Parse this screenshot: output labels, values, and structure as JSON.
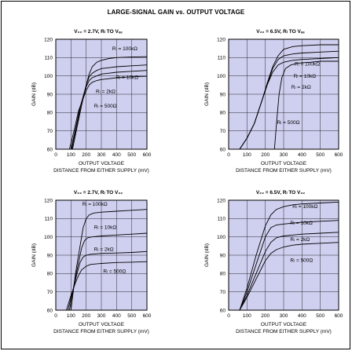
{
  "page_title": "LARGE-SIGNAL GAIN vs. OUTPUT VOLTAGE",
  "colors": {
    "plot_background": "#cfcfef",
    "line": "#000000",
    "grid": "#000000"
  },
  "chart_data": [
    {
      "type": "line",
      "title": "V₂₂ = 2.7V, Rₗ TO Vₑₑ",
      "xlabel": "OUTPUT VOLTAGE",
      "xlabel2": "DISTANCE FROM EITHER SUPPLY (mV)",
      "ylabel": "GAIN (dB)",
      "xlim": [
        0,
        600
      ],
      "ylim": [
        60,
        120
      ],
      "xticks": [
        "0",
        "100",
        "200",
        "300",
        "400",
        "500",
        "600"
      ],
      "yticks": [
        "60",
        "70",
        "80",
        "90",
        "100",
        "110",
        "120"
      ],
      "grid": true,
      "series": [
        {
          "name": "Rₗ = 100kΩ",
          "x": [
            110,
            140,
            170,
            200,
            220,
            240,
            270,
            300,
            350,
            400,
            500,
            600
          ],
          "y": [
            60,
            72,
            84,
            95,
            101,
            105,
            107.5,
            108.5,
            109.5,
            110,
            110.3,
            110.5
          ]
        },
        {
          "name": "Rₗ = 10kΩ",
          "x": [
            105,
            135,
            165,
            200,
            220,
            240,
            270,
            300,
            350,
            400,
            500,
            600
          ],
          "y": [
            60,
            72,
            84,
            95,
            99.5,
            101.5,
            103,
            104,
            104.5,
            105,
            105.5,
            106
          ]
        },
        {
          "name": "Rₗ = 2kΩ",
          "x": [
            100,
            130,
            160,
            200,
            220,
            240,
            270,
            300,
            350,
            400,
            500,
            600
          ],
          "y": [
            60,
            71,
            83,
            94,
            97.5,
            99,
            100,
            101,
            101.5,
            102,
            102.5,
            103
          ]
        },
        {
          "name": "Rₗ = 500Ω",
          "x": [
            90,
            120,
            150,
            200,
            220,
            240,
            270,
            300,
            350,
            400,
            500,
            600
          ],
          "y": [
            60,
            70,
            81,
            92,
            95,
            96.5,
            97.5,
            98,
            98.5,
            99,
            99.5,
            99.8
          ]
        }
      ]
    },
    {
      "type": "line",
      "title": "V₂₂ = 6.5V, Rₗ TO Vₑₑ",
      "xlabel": "OUTPUT VOLTAGE",
      "xlabel2": "DISTANCE FROM EITHER SUPPLY (mV)",
      "ylabel": "GAIN (dB)",
      "xlim": [
        0,
        600
      ],
      "ylim": [
        60,
        120
      ],
      "xticks": [
        "0",
        "100",
        "200",
        "300",
        "400",
        "500",
        "600"
      ],
      "yticks": [
        "60",
        "70",
        "80",
        "90",
        "100",
        "110",
        "120"
      ],
      "grid": true,
      "series": [
        {
          "name": "Rₗ = 100kΩ",
          "x": [
            60,
            100,
            140,
            180,
            210,
            240,
            270,
            300,
            350,
            400,
            500,
            600
          ],
          "y": [
            60,
            66,
            74,
            86,
            96,
            105,
            111,
            114.5,
            116,
            116.5,
            117,
            117
          ]
        },
        {
          "name": "Rₗ = 10kΩ",
          "x": [
            60,
            100,
            140,
            180,
            210,
            240,
            270,
            300,
            350,
            400,
            500,
            600
          ],
          "y": [
            60,
            66,
            74,
            86,
            95,
            104,
            109,
            111,
            112,
            112.5,
            113,
            113.5
          ]
        },
        {
          "name": "Rₗ = 2kΩ",
          "x": [
            60,
            100,
            140,
            180,
            210,
            240,
            270,
            300,
            350,
            400,
            500,
            600
          ],
          "y": [
            60,
            66,
            74,
            86,
            95,
            102,
            106,
            107.5,
            108.5,
            109,
            109.5,
            110
          ]
        },
        {
          "name": "Rₗ = 500Ω",
          "x": [
            250,
            262,
            275,
            290,
            310,
            340,
            380,
            450,
            500,
            600
          ],
          "y": [
            60,
            75,
            90,
            99,
            104,
            106,
            107,
            107.5,
            108,
            108
          ]
        }
      ]
    },
    {
      "type": "line",
      "title": "V₂₂ = 2.7V, Rₗ TO V₂₂",
      "xlabel": "OUTPUT VOLTAGE",
      "xlabel2": "DISTANCE FROM EITHER SUPPLY (mV)",
      "ylabel": "GAIN (dB)",
      "xlim": [
        0,
        600
      ],
      "ylim": [
        60,
        120
      ],
      "xticks": [
        "0",
        "100",
        "200",
        "300",
        "400",
        "500",
        "600"
      ],
      "yticks": [
        "60",
        "70",
        "80",
        "90",
        "100",
        "110",
        "120"
      ],
      "grid": true,
      "series": [
        {
          "name": "Rₗ = 100kΩ",
          "x": [
            100,
            130,
            160,
            180,
            200,
            220,
            250,
            300,
            400,
            500,
            600
          ],
          "y": [
            60,
            80,
            95,
            105,
            110,
            112,
            113,
            113.5,
            114,
            114.5,
            115
          ]
        },
        {
          "name": "Rₗ = 10kΩ",
          "x": [
            90,
            120,
            150,
            170,
            190,
            210,
            240,
            300,
            400,
            500,
            600
          ],
          "y": [
            60,
            74,
            86,
            94,
            98,
            99.5,
            100,
            100.5,
            101,
            101.5,
            102
          ]
        },
        {
          "name": "Rₗ = 2kΩ",
          "x": [
            80,
            110,
            140,
            160,
            180,
            200,
            230,
            300,
            400,
            500,
            600
          ],
          "y": [
            60,
            70,
            80,
            86,
            89,
            90,
            90.5,
            91,
            91.2,
            91.5,
            92
          ]
        },
        {
          "name": "Rₗ = 500Ω",
          "x": [
            70,
            100,
            130,
            150,
            170,
            200,
            230,
            300,
            400,
            500,
            600
          ],
          "y": [
            60,
            68,
            75,
            79,
            82,
            84,
            85,
            85.5,
            86,
            86.2,
            86.5
          ]
        }
      ]
    },
    {
      "type": "line",
      "title": "V₂₂ = 6.5V, Rₗ TO V₂₂",
      "xlabel": "OUTPUT VOLTAGE",
      "xlabel2": "DISTANCE FROM EITHER SUPPLY (mV)",
      "ylabel": "GAIN (dB)",
      "xlim": [
        0,
        600
      ],
      "ylim": [
        60,
        120
      ],
      "xticks": [
        "0",
        "100",
        "200",
        "300",
        "400",
        "500",
        "600"
      ],
      "yticks": [
        "60",
        "70",
        "80",
        "90",
        "100",
        "110",
        "120"
      ],
      "grid": true,
      "series": [
        {
          "name": "Rₗ = 100kΩ",
          "x": [
            60,
            100,
            150,
            200,
            230,
            260,
            300,
            350,
            400,
            500,
            600
          ],
          "y": [
            60,
            72,
            90,
            106,
            112,
            115,
            116.5,
            117.5,
            118,
            118.5,
            119
          ]
        },
        {
          "name": "Rₗ = 10kΩ",
          "x": [
            60,
            100,
            150,
            200,
            230,
            260,
            300,
            350,
            400,
            500,
            600
          ],
          "y": [
            60,
            70,
            85,
            100,
            105,
            106.5,
            107,
            107.5,
            108,
            108.5,
            109
          ]
        },
        {
          "name": "Rₗ = 2kΩ",
          "x": [
            60,
            100,
            150,
            200,
            230,
            260,
            300,
            350,
            400,
            500,
            600
          ],
          "y": [
            60,
            68,
            80,
            92,
            97,
            99.5,
            100.5,
            101,
            101.5,
            102,
            102.5
          ]
        },
        {
          "name": "Rₗ = 500Ω",
          "x": [
            60,
            100,
            150,
            200,
            230,
            260,
            300,
            350,
            400,
            500,
            600
          ],
          "y": [
            60,
            67,
            77,
            87,
            91,
            93,
            94.5,
            95.5,
            96,
            96.5,
            97
          ]
        }
      ]
    }
  ]
}
